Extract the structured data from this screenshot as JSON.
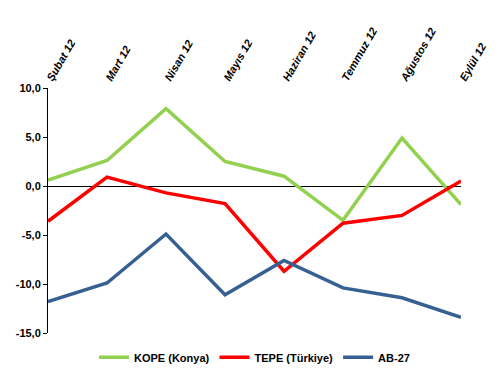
{
  "chart_data": {
    "type": "line",
    "categories": [
      "Şubat 12",
      "Mart 12",
      "Nisan 12",
      "Mayıs 12",
      "Haziran 12",
      "Temmuz 12",
      "Ağustos 12",
      "Eylül 12"
    ],
    "series": [
      {
        "name": "KOPE (Konya)",
        "color": "#92d050",
        "values": [
          0.6,
          2.6,
          7.9,
          2.5,
          1.0,
          -3.5,
          4.9,
          -1.9
        ]
      },
      {
        "name": "TEPE (Türkiye)",
        "color": "#ff0000",
        "values": [
          -3.6,
          0.9,
          -0.7,
          -1.8,
          -8.7,
          -3.8,
          -3.0,
          0.5
        ]
      },
      {
        "name": "AB-27",
        "color": "#376092",
        "values": [
          -11.8,
          -9.9,
          -4.9,
          -11.1,
          -7.6,
          -10.4,
          -11.4,
          -13.4
        ]
      }
    ],
    "ylim": [
      -15,
      10
    ],
    "yticks": [
      {
        "value": -15,
        "label": "-15,0"
      },
      {
        "value": -10,
        "label": "-10,0"
      },
      {
        "value": -5,
        "label": "-5,0"
      },
      {
        "value": 0,
        "label": "0,0"
      },
      {
        "value": 5,
        "label": "5,0"
      },
      {
        "value": 10,
        "label": "10,0"
      }
    ],
    "grid": false,
    "legend": "bottom"
  }
}
